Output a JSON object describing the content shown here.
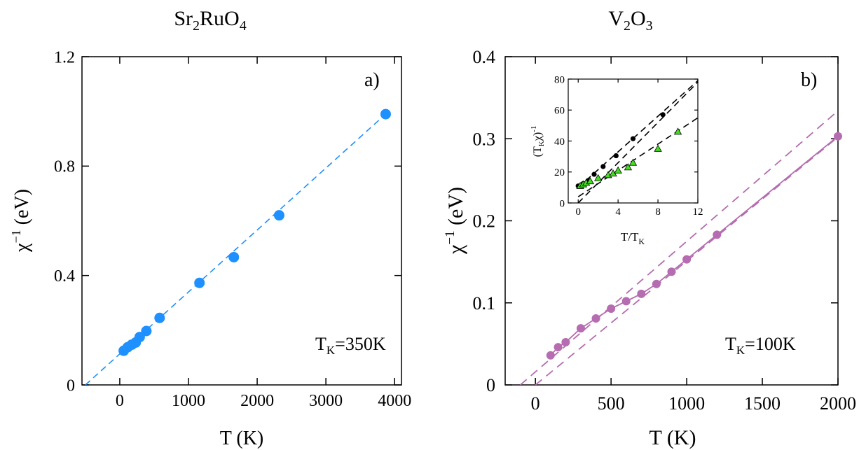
{
  "chart_data": [
    {
      "type": "scatter",
      "title": "Sr2RuO4",
      "title_parts": {
        "a": "Sr",
        "b": "2",
        "c": "RuO",
        "d": "4"
      },
      "panel_label": "a)",
      "annotation": {
        "prefix": "T",
        "sub": "K",
        "rest": "=350K"
      },
      "xlabel": "T (K)",
      "ylabel": {
        "main": "χ",
        "sup": "−1",
        "rest": " (eV)"
      },
      "xlim": [
        -550,
        4100
      ],
      "ylim": [
        0,
        1.2
      ],
      "xticks": [
        0,
        1000,
        2000,
        3000,
        4000
      ],
      "xtick_labels": [
        "0",
        "1000",
        "2000",
        "3000",
        "4000"
      ],
      "yticks": [
        0,
        0.4,
        0.8,
        1.2
      ],
      "ytick_labels": [
        "0",
        "0.4",
        "0.8",
        "1.2"
      ],
      "color": "#1e90ff",
      "series": [
        {
          "x": [
            58,
            116,
            174,
            232,
            290,
            387,
            580,
            1160,
            1660,
            2320,
            3870
          ],
          "y": [
            0.125,
            0.138,
            0.147,
            0.155,
            0.175,
            0.197,
            0.245,
            0.373,
            0.467,
            0.62,
            0.99
          ]
        }
      ],
      "fit_lines": [
        {
          "style": "dashed",
          "x": [
            -500,
            3870
          ],
          "y": [
            0.0,
            0.99
          ]
        }
      ]
    },
    {
      "type": "line",
      "title": "V2O3",
      "title_parts": {
        "a": "V",
        "b": "2",
        "c": "O",
        "d": "3"
      },
      "panel_label": "b)",
      "annotation": {
        "prefix": "T",
        "sub": "K",
        "rest": "=100K"
      },
      "xlabel": "T (K)",
      "ylabel": {
        "main": "χ",
        "sup": "−1",
        "rest": " (eV)"
      },
      "xlim": [
        -200,
        2000
      ],
      "ylim": [
        0,
        0.4
      ],
      "xticks": [
        0,
        500,
        1000,
        1500,
        2000
      ],
      "xtick_labels": [
        "0",
        "500",
        "1000",
        "1500",
        "2000"
      ],
      "yticks": [
        0,
        0.1,
        0.2,
        0.3,
        0.4
      ],
      "ytick_labels": [
        "0",
        "0.1",
        "0.2",
        "0.3",
        "0.4"
      ],
      "color": "#b56cb0",
      "series": [
        {
          "x": [
            100,
            150,
            200,
            300,
            400,
            500,
            600,
            700,
            800,
            900,
            1000,
            1200,
            2000
          ],
          "y": [
            0.036,
            0.046,
            0.052,
            0.069,
            0.081,
            0.093,
            0.102,
            0.111,
            0.123,
            0.138,
            0.153,
            0.183,
            0.303
          ]
        }
      ],
      "fit_lines": [
        {
          "style": "dashed",
          "x": [
            -100,
            2000
          ],
          "y": [
            0.0,
            0.334
          ]
        },
        {
          "style": "dashed",
          "x": [
            0,
            2000
          ],
          "y": [
            0.0,
            0.302
          ]
        }
      ],
      "inset": {
        "xlabel": {
          "a": "T/T",
          "b": "K"
        },
        "ylabel": {
          "a": "(T",
          "b": "K",
          "c": "χ)",
          "d": "-1"
        },
        "xlim": [
          -1,
          12
        ],
        "ylim": [
          0,
          80
        ],
        "xticks": [
          0,
          4,
          8,
          12
        ],
        "xtick_labels": [
          "0",
          "4",
          "8",
          "12"
        ],
        "yticks": [
          0,
          20,
          40,
          60,
          80
        ],
        "ytick_labels": [
          "0",
          "20",
          "40",
          "60",
          "80"
        ],
        "series": [
          {
            "marker": "circle",
            "color": "#000000",
            "x": [
              0.0,
              0.5,
              1.0,
              1.6,
              2.5,
              3.8,
              5.5,
              8.5
            ],
            "y": [
              11,
              12.5,
              14.5,
              18.5,
              23.5,
              30.5,
              41.5,
              57
            ]
          },
          {
            "marker": "triangle",
            "color": "#44dd22",
            "x": [
              0.2,
              0.5,
              0.8,
              1.2,
              2.0,
              3.0,
              3.5,
              4.0,
              5.0,
              5.5,
              8.0,
              10.0
            ],
            "y": [
              11,
              12,
              13,
              14,
              16,
              18,
              19,
              21,
              23,
              26,
              35,
              46
            ]
          }
        ],
        "fit_lines": [
          {
            "style": "dashed",
            "x": [
              0,
              12
            ],
            "y": [
              0,
              78
            ]
          },
          {
            "style": "dashed",
            "x": [
              0,
              12
            ],
            "y": [
              10,
              79
            ]
          },
          {
            "style": "dashed",
            "x": [
              0,
              12
            ],
            "y": [
              4,
              55
            ]
          }
        ]
      }
    }
  ]
}
